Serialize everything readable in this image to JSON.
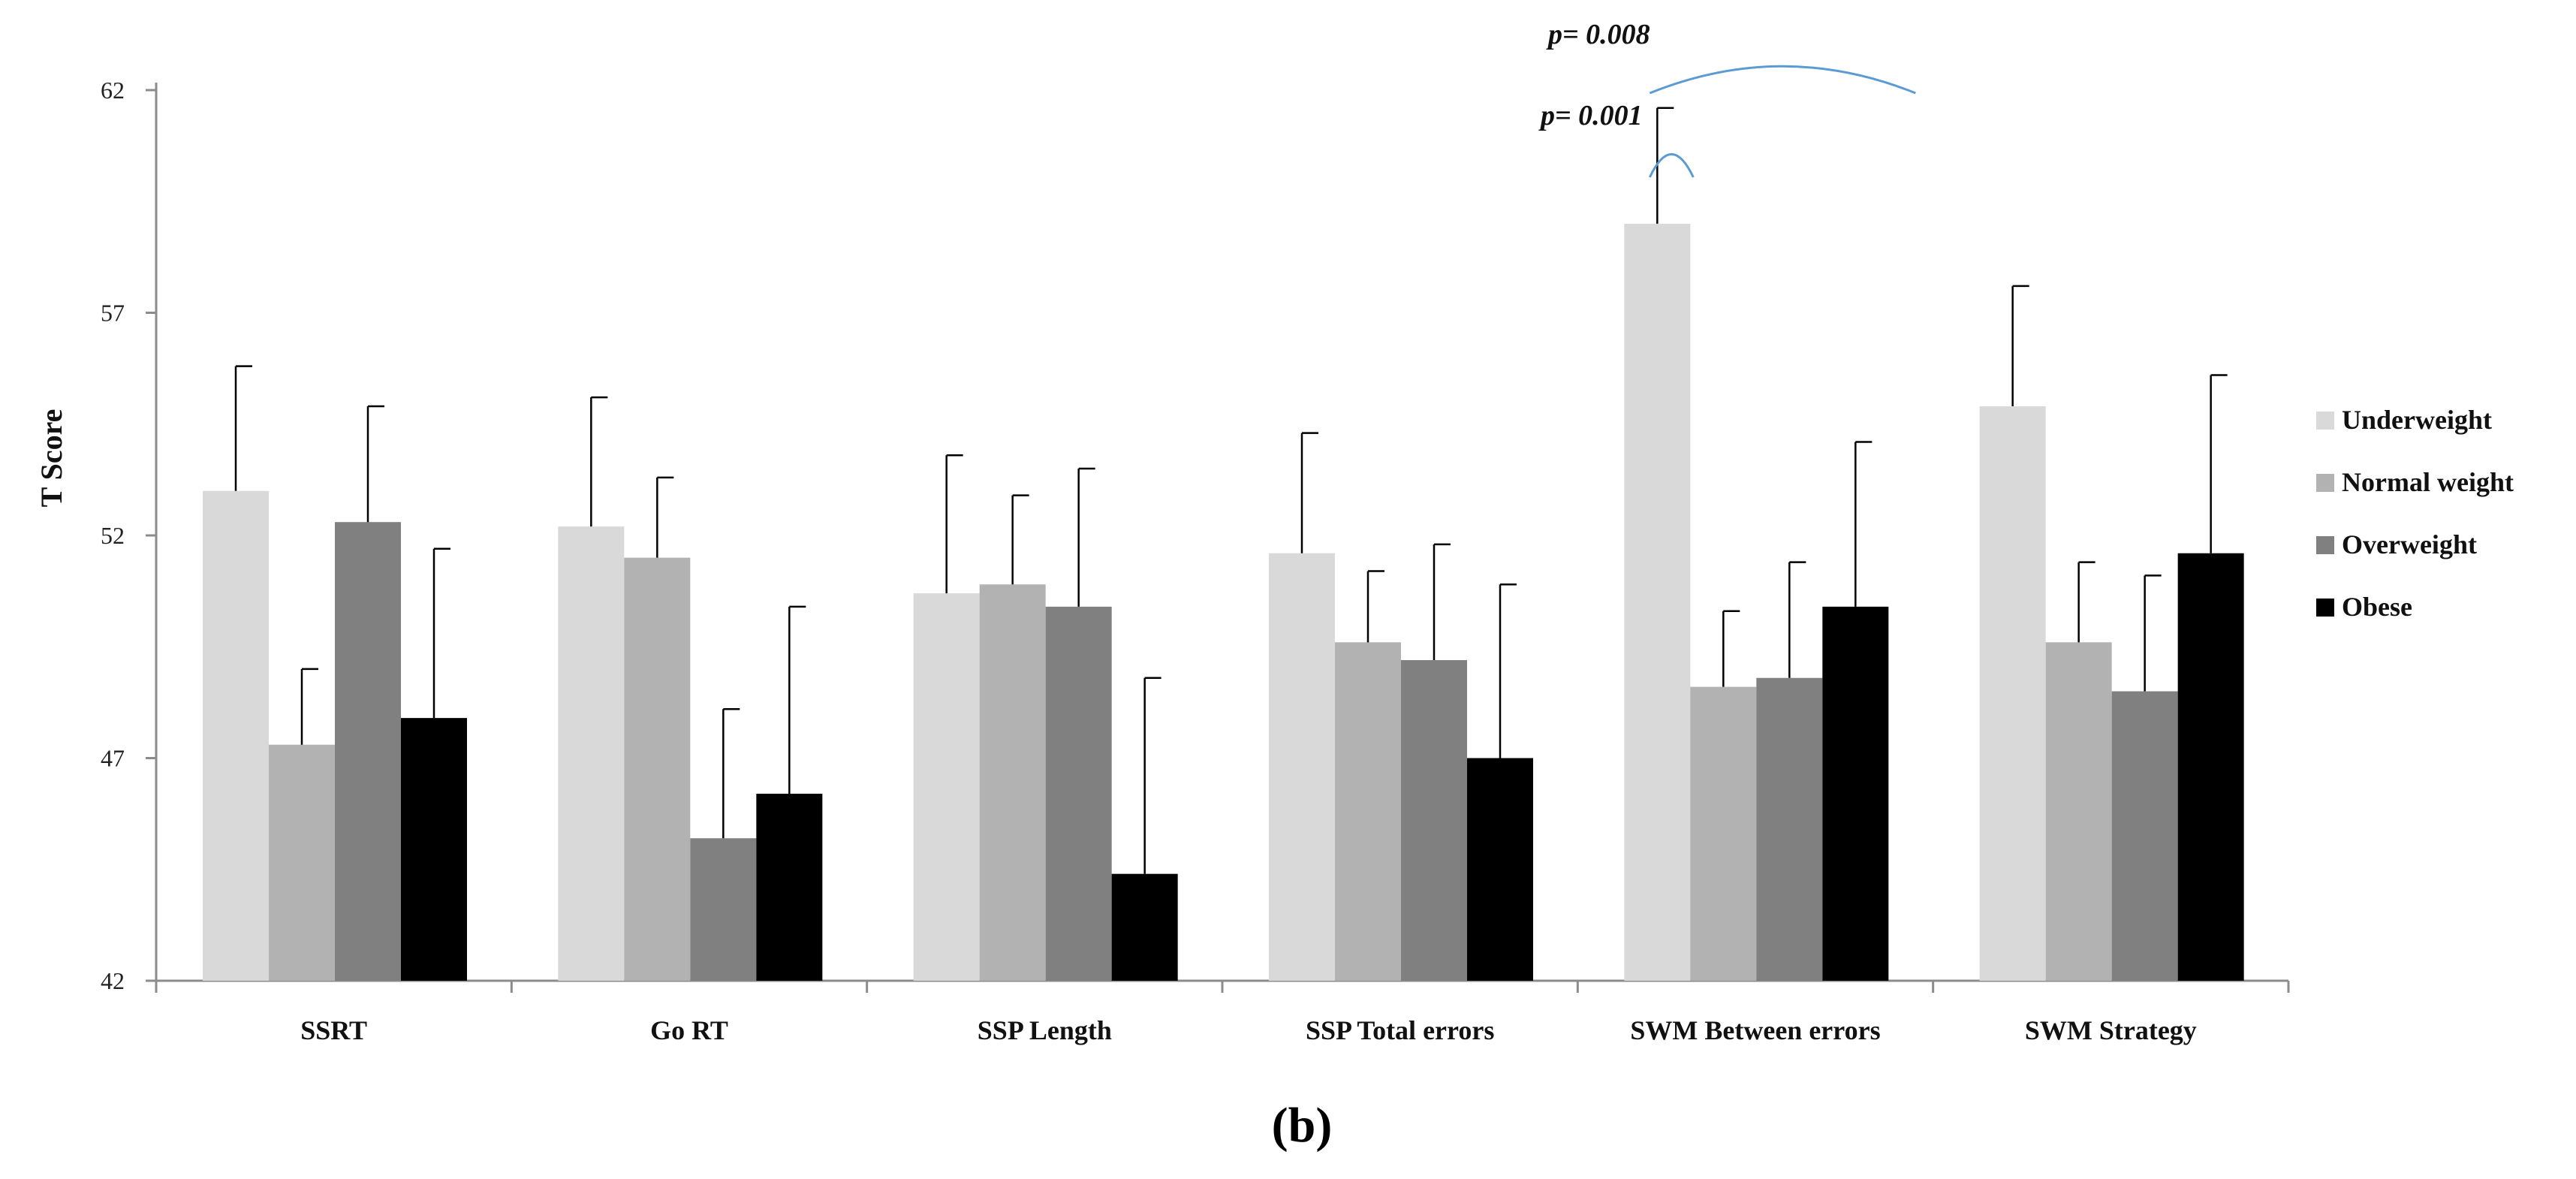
{
  "chart_data": {
    "type": "bar",
    "title": "",
    "panel_label": "(b)",
    "xlabel": "",
    "ylabel": "T Score",
    "ylim": [
      42,
      62
    ],
    "yticks": [
      42,
      47,
      52,
      57,
      62
    ],
    "grid": false,
    "legend_position": "right",
    "categories": [
      "SSRT",
      "Go RT",
      "SSP Length",
      "SSP Total errors",
      "SWM Between errors",
      "SWM Strategy"
    ],
    "series": [
      {
        "name": "Underweight",
        "color": "#d9d9d9",
        "values": [
          53.0,
          52.2,
          50.7,
          51.6,
          59.0,
          54.9
        ],
        "error": [
          2.8,
          2.9,
          3.1,
          2.7,
          2.6,
          2.7
        ]
      },
      {
        "name": "Normal weight",
        "color": "#b2b2b2",
        "values": [
          47.3,
          51.5,
          50.9,
          49.6,
          48.6,
          49.6
        ],
        "error": [
          1.7,
          1.8,
          2.0,
          1.6,
          1.7,
          1.8
        ]
      },
      {
        "name": "Overweight",
        "color": "#808080",
        "values": [
          52.3,
          45.2,
          50.4,
          49.2,
          48.8,
          48.5
        ],
        "error": [
          2.6,
          2.9,
          3.1,
          2.6,
          2.6,
          2.6
        ]
      },
      {
        "name": "Obese",
        "color": "#000000",
        "values": [
          47.9,
          46.2,
          44.4,
          47.0,
          50.4,
          51.6
        ],
        "error": [
          3.8,
          4.2,
          4.4,
          3.9,
          3.7,
          4.0
        ]
      }
    ],
    "annotations": [
      {
        "label": "p= 0.008",
        "category": "SWM Between errors",
        "from_series": "Underweight",
        "to_series": "Obese"
      },
      {
        "label": "p= 0.001",
        "category": "SWM Between errors",
        "from_series": "Underweight",
        "to_series": "Normal weight"
      }
    ],
    "annotation_color": "#5b9bd5"
  }
}
